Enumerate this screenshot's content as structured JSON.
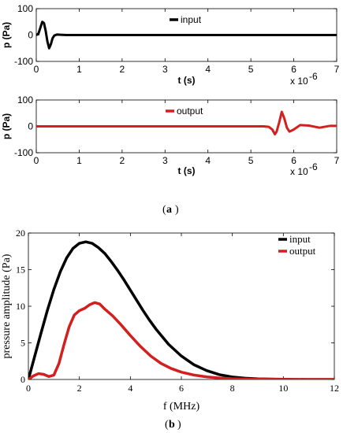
{
  "colors": {
    "input": "#000000",
    "output": "#d41f1f"
  },
  "chart_data": [
    {
      "type": "line",
      "panel": "top",
      "xlabel": "t (s)",
      "ylabel": "p (Pa)",
      "xlim": [
        0,
        7
      ],
      "ylim": [
        -100,
        100
      ],
      "x_ticks": [
        0,
        1,
        2,
        3,
        4,
        5,
        6,
        7
      ],
      "y_ticks": [
        -100,
        0,
        100
      ],
      "x_multiplier_base": "x 10",
      "x_multiplier_exp": "-6",
      "legend_position": "top-center",
      "series": [
        {
          "name": "input",
          "color": "#000000",
          "x": [
            0,
            0.05,
            0.1,
            0.14,
            0.18,
            0.22,
            0.26,
            0.3,
            0.34,
            0.38,
            0.42,
            0.48,
            0.56,
            0.7,
            1.0,
            7.0
          ],
          "y": [
            0,
            5,
            30,
            50,
            45,
            15,
            -25,
            -50,
            -35,
            -12,
            -2,
            2,
            1,
            0,
            0,
            0
          ]
        }
      ]
    },
    {
      "type": "line",
      "panel": "middle",
      "xlabel": "t (s)",
      "ylabel": "p (Pa)",
      "xlim": [
        0,
        7
      ],
      "ylim": [
        -100,
        100
      ],
      "x_ticks": [
        0,
        1,
        2,
        3,
        4,
        5,
        6,
        7
      ],
      "y_ticks": [
        -100,
        0,
        100
      ],
      "x_multiplier_base": "x 10",
      "x_multiplier_exp": "-6",
      "legend_position": "top-center",
      "series": [
        {
          "name": "output",
          "color": "#d41f1f",
          "x": [
            0,
            5.3,
            5.42,
            5.5,
            5.56,
            5.6,
            5.66,
            5.72,
            5.78,
            5.84,
            5.9,
            6.0,
            6.15,
            6.35,
            6.6,
            6.85,
            7.0
          ],
          "y": [
            0,
            0,
            -2,
            -12,
            -30,
            -20,
            15,
            55,
            30,
            -5,
            -20,
            -12,
            5,
            3,
            -5,
            2,
            2
          ]
        }
      ]
    },
    {
      "type": "line",
      "panel": "bottom",
      "xlabel": "f (MHz)",
      "ylabel": "pressure amplitude (Pa)",
      "xlim": [
        0,
        12
      ],
      "ylim": [
        0,
        20
      ],
      "x_ticks": [
        0,
        2,
        4,
        6,
        8,
        10,
        12
      ],
      "y_ticks": [
        0,
        5,
        10,
        15,
        20
      ],
      "legend_position": "top-right",
      "series": [
        {
          "name": "input",
          "color": "#000000",
          "x": [
            0,
            0.25,
            0.5,
            0.75,
            1.0,
            1.25,
            1.5,
            1.75,
            2.0,
            2.25,
            2.5,
            2.75,
            3.0,
            3.25,
            3.5,
            3.75,
            4.0,
            4.25,
            4.5,
            4.75,
            5.0,
            5.5,
            6.0,
            6.5,
            7.0,
            7.5,
            8.0,
            8.5,
            9.0,
            10.0,
            11.0,
            12.0
          ],
          "y": [
            0,
            3.2,
            6.4,
            9.5,
            12.3,
            14.7,
            16.6,
            17.9,
            18.6,
            18.8,
            18.6,
            18.0,
            17.2,
            16.1,
            14.9,
            13.6,
            12.2,
            10.8,
            9.4,
            8.1,
            6.9,
            4.8,
            3.2,
            2.0,
            1.2,
            0.65,
            0.34,
            0.17,
            0.08,
            0.02,
            0,
            0
          ]
        },
        {
          "name": "output",
          "color": "#d41f1f",
          "x": [
            0,
            0.2,
            0.4,
            0.6,
            0.8,
            1.0,
            1.2,
            1.4,
            1.6,
            1.8,
            2.0,
            2.2,
            2.4,
            2.6,
            2.8,
            3.0,
            3.3,
            3.6,
            4.0,
            4.4,
            4.8,
            5.2,
            5.6,
            6.0,
            6.5,
            7.0,
            7.5,
            8.0,
            9.0,
            10.0,
            11.0,
            12.0
          ],
          "y": [
            0,
            0.5,
            0.8,
            0.7,
            0.4,
            0.6,
            2.2,
            4.8,
            7.2,
            8.8,
            9.4,
            9.7,
            10.2,
            10.5,
            10.3,
            9.6,
            8.7,
            7.6,
            6.0,
            4.5,
            3.2,
            2.2,
            1.5,
            1.0,
            0.6,
            0.35,
            0.2,
            0.1,
            0.03,
            0.01,
            0,
            0
          ]
        }
      ]
    }
  ],
  "captions": {
    "a": "a",
    "b": "b"
  }
}
